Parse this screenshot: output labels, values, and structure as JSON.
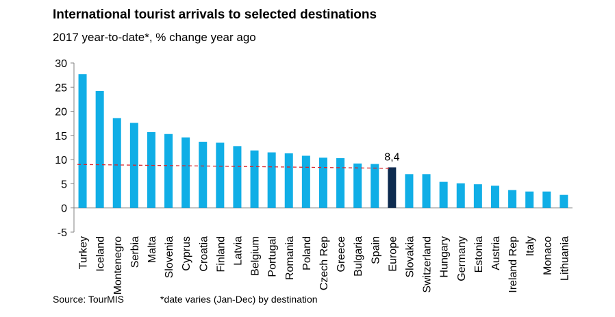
{
  "chart_data": {
    "type": "bar",
    "title": "International tourist arrivals to selected destinations",
    "subtitle": "2017 year-to-date*, % change year ago",
    "categories": [
      "Turkey",
      "Iceland",
      "Montenegro",
      "Serbia",
      "Malta",
      "Slovenia",
      "Cyprus",
      "Croatia",
      "Finland",
      "Latvia",
      "Belgium",
      "Portugal",
      "Romania",
      "Poland",
      "Czech Rep",
      "Greece",
      "Bulgaria",
      "Spain",
      "Europe",
      "Slovakia",
      "Switzerland",
      "Hungary",
      "Germany",
      "Estonia",
      "Austria",
      "Ireland Rep",
      "Italy",
      "Monaco",
      "Lithuania"
    ],
    "values": [
      27.7,
      24.2,
      18.6,
      17.6,
      15.7,
      15.3,
      14.6,
      13.7,
      13.5,
      12.8,
      11.9,
      11.5,
      11.3,
      10.8,
      10.4,
      10.3,
      9.2,
      9.1,
      8.4,
      7.0,
      7.0,
      5.4,
      5.1,
      4.9,
      4.6,
      3.7,
      3.4,
      3.4,
      2.7
    ],
    "highlight": {
      "category": "Europe",
      "label": "8,4"
    },
    "trendline": {
      "style": "dashed",
      "color": "#d9262b",
      "start": 9.0,
      "end": 8.2
    },
    "ylim": [
      -5,
      30
    ],
    "yticks": [
      -5,
      0,
      5,
      10,
      15,
      20,
      25,
      30
    ],
    "xlabel": "",
    "ylabel": "",
    "grid": false,
    "colors": {
      "bar": "#10aee6",
      "highlight": "#0d2b4f",
      "axis": "#808080"
    }
  },
  "footer": {
    "source": "Source: TourMIS",
    "note": "*date varies (Jan-Dec) by destination"
  }
}
